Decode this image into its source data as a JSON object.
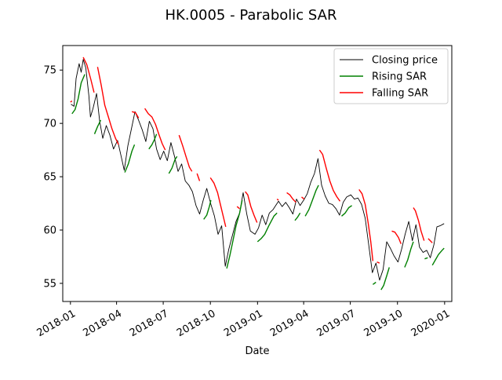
{
  "chart_data": {
    "type": "line",
    "title": "HK.0005 - Parabolic SAR",
    "xlabel": "Date",
    "ylabel": "",
    "xlim": [
      "2017-12-17",
      "2020-01-15"
    ],
    "ylim": [
      53.3,
      77.3
    ],
    "x_ticks": [
      "2018-01",
      "2018-04",
      "2018-07",
      "2018-10",
      "2019-01",
      "2019-04",
      "2019-07",
      "2019-10",
      "2020-01"
    ],
    "y_ticks": [
      55,
      60,
      65,
      70,
      75
    ],
    "grid": false,
    "legend_position": "upper right",
    "series": [
      {
        "name": "Closing price",
        "color": "#000000",
        "points": [
          [
            "2018-01-02",
            71.8
          ],
          [
            "2018-01-08",
            71.6
          ],
          [
            "2018-01-12",
            74.2
          ],
          [
            "2018-01-18",
            75.6
          ],
          [
            "2018-01-22",
            74.8
          ],
          [
            "2018-01-26",
            76.0
          ],
          [
            "2018-01-31",
            75.2
          ],
          [
            "2018-02-06",
            72.6
          ],
          [
            "2018-02-09",
            70.6
          ],
          [
            "2018-02-14",
            71.4
          ],
          [
            "2018-02-21",
            72.8
          ],
          [
            "2018-02-27",
            70.2
          ],
          [
            "2018-03-05",
            68.6
          ],
          [
            "2018-03-12",
            69.8
          ],
          [
            "2018-03-19",
            68.9
          ],
          [
            "2018-03-26",
            67.6
          ],
          [
            "2018-04-03",
            68.4
          ],
          [
            "2018-04-10",
            66.9
          ],
          [
            "2018-04-16",
            65.6
          ],
          [
            "2018-04-23",
            67.9
          ],
          [
            "2018-04-30",
            69.5
          ],
          [
            "2018-05-07",
            71.1
          ],
          [
            "2018-05-14",
            70.3
          ],
          [
            "2018-05-21",
            69.4
          ],
          [
            "2018-05-28",
            68.3
          ],
          [
            "2018-06-04",
            70.2
          ],
          [
            "2018-06-11",
            69.5
          ],
          [
            "2018-06-18",
            67.6
          ],
          [
            "2018-06-25",
            66.6
          ],
          [
            "2018-07-02",
            67.4
          ],
          [
            "2018-07-09",
            66.5
          ],
          [
            "2018-07-16",
            68.2
          ],
          [
            "2018-07-23",
            66.9
          ],
          [
            "2018-07-30",
            65.5
          ],
          [
            "2018-08-06",
            66.2
          ],
          [
            "2018-08-13",
            64.6
          ],
          [
            "2018-08-20",
            64.2
          ],
          [
            "2018-08-27",
            63.6
          ],
          [
            "2018-09-03",
            62.3
          ],
          [
            "2018-09-10",
            61.5
          ],
          [
            "2018-09-17",
            62.8
          ],
          [
            "2018-09-24",
            63.9
          ],
          [
            "2018-10-02",
            62.4
          ],
          [
            "2018-10-09",
            61.3
          ],
          [
            "2018-10-16",
            59.6
          ],
          [
            "2018-10-23",
            60.4
          ],
          [
            "2018-10-30",
            56.6
          ],
          [
            "2018-11-06",
            58.2
          ],
          [
            "2018-11-13",
            59.5
          ],
          [
            "2018-11-20",
            60.8
          ],
          [
            "2018-11-27",
            61.6
          ],
          [
            "2018-12-04",
            63.5
          ],
          [
            "2018-12-11",
            61.5
          ],
          [
            "2018-12-18",
            59.9
          ],
          [
            "2018-12-27",
            59.6
          ],
          [
            "2019-01-03",
            60.2
          ],
          [
            "2019-01-10",
            61.4
          ],
          [
            "2019-01-17",
            60.5
          ],
          [
            "2019-01-24",
            61.6
          ],
          [
            "2019-01-31",
            61.9
          ],
          [
            "2019-02-11",
            62.7
          ],
          [
            "2019-02-18",
            62.2
          ],
          [
            "2019-02-25",
            62.6
          ],
          [
            "2019-03-04",
            62.1
          ],
          [
            "2019-03-11",
            61.5
          ],
          [
            "2019-03-18",
            62.9
          ],
          [
            "2019-03-25",
            62.3
          ],
          [
            "2019-04-01",
            62.8
          ],
          [
            "2019-04-08",
            63.4
          ],
          [
            "2019-04-15",
            64.5
          ],
          [
            "2019-04-22",
            65.3
          ],
          [
            "2019-04-29",
            66.7
          ],
          [
            "2019-05-06",
            64.2
          ],
          [
            "2019-05-13",
            63.2
          ],
          [
            "2019-05-20",
            62.5
          ],
          [
            "2019-05-27",
            62.4
          ],
          [
            "2019-06-03",
            62.0
          ],
          [
            "2019-06-10",
            61.4
          ],
          [
            "2019-06-17",
            62.6
          ],
          [
            "2019-06-24",
            63.1
          ],
          [
            "2019-07-02",
            63.3
          ],
          [
            "2019-07-09",
            62.9
          ],
          [
            "2019-07-16",
            63.0
          ],
          [
            "2019-07-23",
            62.4
          ],
          [
            "2019-07-30",
            61.1
          ],
          [
            "2019-08-06",
            58.6
          ],
          [
            "2019-08-13",
            56.0
          ],
          [
            "2019-08-20",
            56.9
          ],
          [
            "2019-08-27",
            55.3
          ],
          [
            "2019-09-03",
            56.3
          ],
          [
            "2019-09-10",
            58.9
          ],
          [
            "2019-09-17",
            58.3
          ],
          [
            "2019-09-24",
            57.6
          ],
          [
            "2019-10-02",
            57.0
          ],
          [
            "2019-10-09",
            58.2
          ],
          [
            "2019-10-16",
            59.6
          ],
          [
            "2019-10-23",
            60.8
          ],
          [
            "2019-10-30",
            59.0
          ],
          [
            "2019-11-06",
            60.5
          ],
          [
            "2019-11-13",
            58.4
          ],
          [
            "2019-11-20",
            57.9
          ],
          [
            "2019-11-27",
            58.1
          ],
          [
            "2019-12-04",
            57.4
          ],
          [
            "2019-12-11",
            58.6
          ],
          [
            "2019-12-17",
            60.3
          ],
          [
            "2019-12-23",
            60.4
          ],
          [
            "2019-12-31",
            60.6
          ]
        ]
      },
      {
        "name": "Rising SAR",
        "color": "#008000",
        "segments": [
          [
            [
              "2018-01-04",
              70.9
            ],
            [
              "2018-01-10",
              71.3
            ],
            [
              "2018-01-16",
              72.3
            ],
            [
              "2018-01-22",
              73.8
            ],
            [
              "2018-01-29",
              74.6
            ]
          ],
          [
            [
              "2018-02-17",
              69.0
            ],
            [
              "2018-02-23",
              69.7
            ],
            [
              "2018-03-01",
              70.3
            ]
          ],
          [
            [
              "2018-04-17",
              65.4
            ],
            [
              "2018-04-24",
              66.2
            ],
            [
              "2018-05-01",
              67.4
            ],
            [
              "2018-05-06",
              68.0
            ]
          ],
          [
            [
              "2018-06-03",
              67.6
            ],
            [
              "2018-06-09",
              68.0
            ],
            [
              "2018-06-14",
              68.5
            ],
            [
              "2018-06-18",
              69.0
            ]
          ],
          [
            [
              "2018-07-12",
              65.3
            ],
            [
              "2018-07-18",
              65.8
            ],
            [
              "2018-07-24",
              66.6
            ],
            [
              "2018-07-28",
              66.9
            ]
          ],
          [
            [
              "2018-09-18",
              61.0
            ],
            [
              "2018-09-24",
              61.4
            ],
            [
              "2018-09-29",
              62.2
            ],
            [
              "2018-10-02",
              62.8
            ]
          ],
          [
            [
              "2018-11-02",
              56.4
            ],
            [
              "2018-11-08",
              57.6
            ],
            [
              "2018-11-14",
              59.0
            ],
            [
              "2018-11-20",
              60.4
            ],
            [
              "2018-11-27",
              61.6
            ],
            [
              "2018-12-02",
              62.8
            ]
          ],
          [
            [
              "2019-01-01",
              58.9
            ],
            [
              "2019-01-08",
              59.2
            ],
            [
              "2019-01-15",
              59.6
            ],
            [
              "2019-01-23",
              60.4
            ],
            [
              "2019-02-02",
              61.3
            ],
            [
              "2019-02-08",
              61.6
            ]
          ],
          [
            [
              "2019-03-15",
              60.9
            ],
            [
              "2019-03-20",
              61.2
            ],
            [
              "2019-03-25",
              61.6
            ]
          ],
          [
            [
              "2019-04-04",
              61.3
            ],
            [
              "2019-04-11",
              61.9
            ],
            [
              "2019-04-18",
              62.8
            ],
            [
              "2019-04-25",
              63.7
            ],
            [
              "2019-04-30",
              64.2
            ]
          ],
          [
            [
              "2019-06-14",
              61.3
            ],
            [
              "2019-06-21",
              61.6
            ],
            [
              "2019-06-28",
              62.1
            ],
            [
              "2019-07-04",
              62.3
            ]
          ],
          [
            [
              "2019-08-14",
              54.9
            ],
            [
              "2019-08-20",
              55.1
            ]
          ],
          [
            [
              "2019-08-30",
              54.4
            ],
            [
              "2019-09-04",
              54.8
            ],
            [
              "2019-09-10",
              55.7
            ],
            [
              "2019-09-15",
              56.5
            ]
          ],
          [
            [
              "2019-10-15",
              56.5
            ],
            [
              "2019-10-21",
              57.2
            ],
            [
              "2019-10-27",
              58.2
            ],
            [
              "2019-11-01",
              58.9
            ]
          ],
          [
            [
              "2019-11-23",
              57.3
            ],
            [
              "2019-11-29",
              57.4
            ]
          ],
          [
            [
              "2019-12-08",
              56.7
            ],
            [
              "2019-12-14",
              57.2
            ],
            [
              "2019-12-20",
              57.7
            ],
            [
              "2019-12-27",
              58.1
            ],
            [
              "2019-12-31",
              58.3
            ]
          ]
        ]
      },
      {
        "name": "Falling SAR",
        "color": "#ff0000",
        "segments": [
          [
            [
              "2018-01-01",
              72.0
            ],
            [
              "2018-01-04",
              72.1
            ]
          ],
          [
            [
              "2018-01-26",
              76.2
            ],
            [
              "2018-02-02",
              75.5
            ],
            [
              "2018-02-10",
              74.1
            ],
            [
              "2018-02-16",
              72.9
            ]
          ],
          [
            [
              "2018-02-23",
              75.3
            ],
            [
              "2018-03-02",
              73.6
            ],
            [
              "2018-03-09",
              71.7
            ],
            [
              "2018-03-16",
              70.6
            ],
            [
              "2018-03-23",
              69.5
            ],
            [
              "2018-03-30",
              68.6
            ],
            [
              "2018-04-05",
              68.0
            ]
          ],
          [
            [
              "2018-05-01",
              71.1
            ],
            [
              "2018-05-08",
              71.0
            ],
            [
              "2018-05-14",
              70.5
            ]
          ],
          [
            [
              "2018-05-26",
              71.4
            ],
            [
              "2018-06-02",
              70.9
            ],
            [
              "2018-06-09",
              70.6
            ],
            [
              "2018-06-16",
              69.9
            ],
            [
              "2018-06-23",
              68.9
            ],
            [
              "2018-06-29",
              68.1
            ],
            [
              "2018-07-05",
              67.5
            ]
          ],
          [
            [
              "2018-08-01",
              68.9
            ],
            [
              "2018-08-08",
              67.9
            ],
            [
              "2018-08-15",
              66.8
            ],
            [
              "2018-08-21",
              65.9
            ],
            [
              "2018-08-26",
              65.5
            ]
          ],
          [
            [
              "2018-09-05",
              65.3
            ],
            [
              "2018-09-10",
              64.6
            ]
          ],
          [
            [
              "2018-10-01",
              64.9
            ],
            [
              "2018-10-08",
              64.4
            ],
            [
              "2018-10-15",
              63.5
            ],
            [
              "2018-10-21",
              62.3
            ],
            [
              "2018-10-27",
              61.1
            ],
            [
              "2018-10-31",
              60.3
            ]
          ],
          [
            [
              "2018-11-22",
              62.2
            ],
            [
              "2018-11-27",
              62.0
            ]
          ],
          [
            [
              "2018-12-08",
              63.6
            ],
            [
              "2018-12-13",
              63.3
            ],
            [
              "2018-12-19",
              62.2
            ],
            [
              "2018-12-25",
              61.4
            ],
            [
              "2018-12-31",
              60.7
            ]
          ],
          [
            [
              "2019-02-08",
              62.9
            ],
            [
              "2019-02-11",
              62.8
            ]
          ],
          [
            [
              "2019-02-27",
              63.5
            ],
            [
              "2019-03-05",
              63.3
            ],
            [
              "2019-03-11",
              62.9
            ],
            [
              "2019-03-17",
              62.6
            ]
          ],
          [
            [
              "2019-03-28",
              63.1
            ],
            [
              "2019-04-02",
              62.9
            ]
          ],
          [
            [
              "2019-05-02",
              67.5
            ],
            [
              "2019-05-08",
              67.1
            ],
            [
              "2019-05-15",
              65.8
            ],
            [
              "2019-05-22",
              64.6
            ],
            [
              "2019-05-29",
              63.7
            ],
            [
              "2019-06-05",
              63.1
            ],
            [
              "2019-06-11",
              62.7
            ]
          ],
          [
            [
              "2019-07-18",
              63.8
            ],
            [
              "2019-07-24",
              63.4
            ],
            [
              "2019-07-30",
              62.4
            ],
            [
              "2019-08-05",
              60.6
            ],
            [
              "2019-08-10",
              58.9
            ],
            [
              "2019-08-14",
              57.1
            ]
          ],
          [
            [
              "2019-08-22",
              57.0
            ],
            [
              "2019-08-27",
              56.9
            ]
          ],
          [
            [
              "2019-09-20",
              59.9
            ],
            [
              "2019-09-26",
              59.8
            ],
            [
              "2019-10-03",
              59.3
            ],
            [
              "2019-10-08",
              58.7
            ]
          ],
          [
            [
              "2019-11-01",
              62.1
            ],
            [
              "2019-11-05",
              61.8
            ],
            [
              "2019-11-11",
              60.9
            ],
            [
              "2019-11-16",
              59.9
            ],
            [
              "2019-11-22",
              59.0
            ]
          ],
          [
            [
              "2019-11-30",
              59.2
            ],
            [
              "2019-12-04",
              59.0
            ],
            [
              "2019-12-08",
              58.8
            ]
          ]
        ]
      }
    ]
  }
}
